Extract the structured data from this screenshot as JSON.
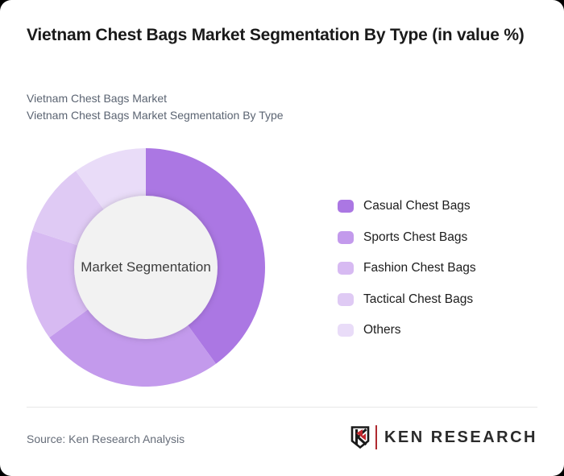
{
  "window": {
    "background_color": "#000000",
    "card_color": "#ffffff"
  },
  "header": {
    "title": "Vietnam Chest Bags Market Segmentation By Type (in value %)",
    "subtitle_line1": "Vietnam Chest Bags Market",
    "subtitle_line2": "Vietnam Chest Bags Market Segmentation By Type"
  },
  "chart_data": {
    "type": "pie",
    "variant": "donut",
    "title": "Vietnam Chest Bags Market Segmentation By Type (in value %)",
    "center_label": "Market Segmentation",
    "categories": [
      "Casual Chest Bags",
      "Sports Chest Bags",
      "Fashion Chest Bags",
      "Tactical Chest Bags",
      "Others"
    ],
    "values": [
      40,
      25,
      15,
      10,
      10
    ],
    "unit": "percent_of_value",
    "colors": [
      "#ab77e3",
      "#c39aec",
      "#d7baf2",
      "#dfcaf4",
      "#e9dcf8"
    ],
    "start_angle_deg": 0,
    "direction": "clockwise",
    "inner_radius_ratio": 0.6,
    "hole_color": "#f2f2f2",
    "legend_position": "right",
    "data_labels_shown": false
  },
  "footer": {
    "source_text": "Source: Ken Research Analysis",
    "logo_text": "KEN RESEARCH",
    "logo_accent_color": "#c0272d"
  }
}
